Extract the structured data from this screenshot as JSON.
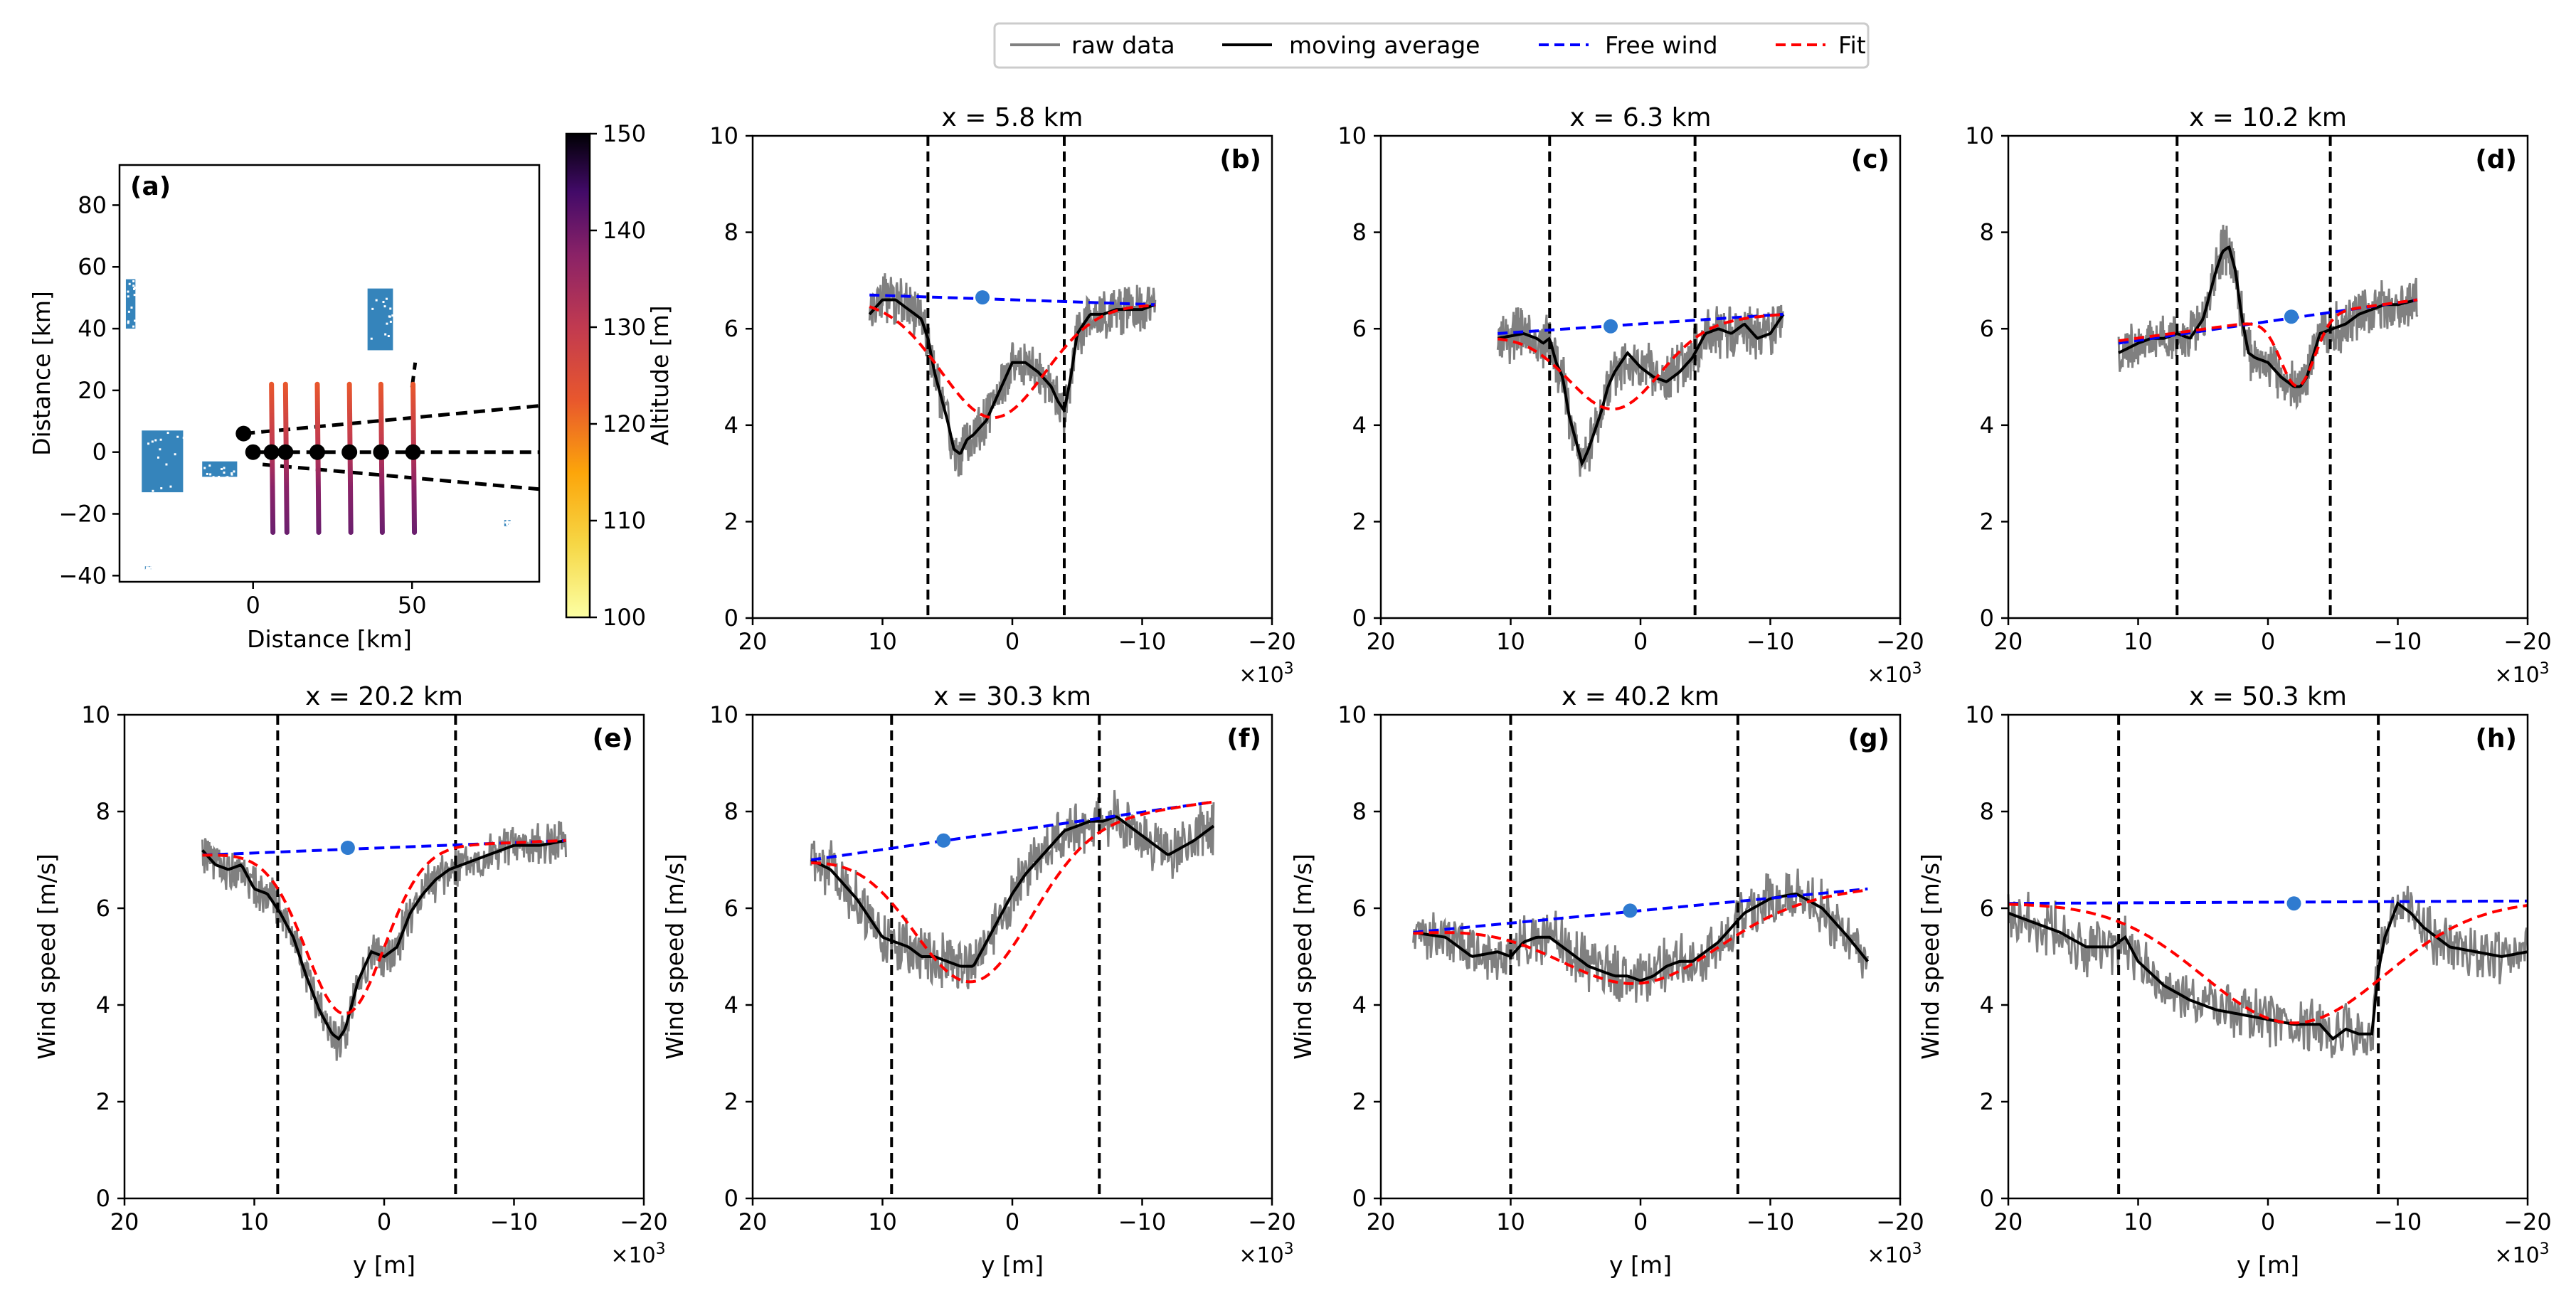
{
  "legend": {
    "placement": "top-center",
    "items": [
      {
        "label": "raw data",
        "color": "#808080",
        "style": "solid"
      },
      {
        "label": "moving average",
        "color": "#000000",
        "style": "solid"
      },
      {
        "label": "Free wind",
        "color": "#0000ff",
        "style": "dashed"
      },
      {
        "label": "Fit",
        "color": "#ff0000",
        "style": "dashed"
      }
    ]
  },
  "colors": {
    "raw": "#808080",
    "avg": "#000000",
    "free": "#0000ff",
    "fit": "#ff0000",
    "point": "#2f7bd0",
    "map_blue": "#1f77b4"
  },
  "chart_data": [
    {
      "type": "scatter",
      "panel": "(a)",
      "xlabel": "Distance [km]",
      "ylabel": "Distance [km]",
      "xlim": [
        -42,
        90
      ],
      "ylim": [
        -42,
        93
      ],
      "xticks": [
        0,
        50
      ],
      "yticks": [
        -40,
        -20,
        0,
        20,
        40,
        60,
        80
      ],
      "colorbar": {
        "label": "Altitude [m]",
        "range": [
          100,
          150
        ],
        "ticks": [
          100,
          110,
          120,
          130,
          140,
          150
        ],
        "colormap": "inferno_r"
      },
      "turbine_clusters": [
        {
          "x": [
            -40,
            -37
          ],
          "y": [
            40,
            56
          ]
        },
        {
          "x": [
            -35,
            -22
          ],
          "y": [
            -13,
            7
          ]
        },
        {
          "x": [
            -16,
            -5
          ],
          "y": [
            -8,
            -3
          ]
        },
        {
          "x": [
            36,
            44
          ],
          "y": [
            33,
            53
          ]
        },
        {
          "x": [
            -34,
            -32
          ],
          "y": [
            -38,
            -37
          ]
        },
        {
          "x": [
            79,
            81
          ],
          "y": [
            -24,
            -22
          ]
        }
      ],
      "flight_legs_x": [
        5.8,
        10.2,
        20.2,
        30.3,
        40.2,
        50.3
      ],
      "flight_legs_y": [
        -26,
        22
      ],
      "centre_points": [
        {
          "x": -3,
          "y": 6
        },
        {
          "x": 0,
          "y": 0
        },
        {
          "x": 5.8,
          "y": 0
        },
        {
          "x": 10.2,
          "y": 0
        },
        {
          "x": 20.2,
          "y": 0
        },
        {
          "x": 30.3,
          "y": 0
        },
        {
          "x": 40.2,
          "y": 0
        },
        {
          "x": 50.3,
          "y": 0
        }
      ],
      "wake_lines": [
        {
          "x": [
            -3,
            90
          ],
          "y": [
            6,
            15
          ]
        },
        {
          "x": [
            0,
            90
          ],
          "y": [
            0,
            0
          ]
        },
        {
          "x": [
            3,
            90
          ],
          "y": [
            -4,
            -12
          ]
        },
        {
          "x": [
            50,
            51
          ],
          "y": [
            21,
            29
          ]
        }
      ]
    },
    {
      "type": "line",
      "panel": "(b)",
      "title": "x = 5.8 km",
      "xlim": [
        20000,
        -20000
      ],
      "ylim": [
        0,
        10
      ],
      "xticks": [
        20,
        10,
        0,
        -10,
        -20
      ],
      "yticks": [
        0,
        2,
        4,
        6,
        8,
        10
      ],
      "x_multiplier": "×10³",
      "ylabel": "",
      "xlabel": "",
      "y_range": [
        11000,
        -11000
      ],
      "vlines": [
        6500,
        -4000
      ],
      "free_wind": {
        "x": [
          11000,
          -11000
        ],
        "y": [
          6.7,
          6.5
        ],
        "marker": {
          "x": 2300,
          "y": 6.65
        }
      },
      "fit": {
        "base_start": 6.6,
        "base_end": 6.5,
        "depth": 2.4,
        "center": 1500,
        "sigma": 4000
      },
      "avg_x": [
        11000,
        10000,
        9000,
        8000,
        7000,
        6500,
        6000,
        5000,
        4500,
        4000,
        3500,
        3000,
        2000,
        1000,
        0,
        -1000,
        -2000,
        -3000,
        -3500,
        -4000,
        -4500,
        -5000,
        -6000,
        -7000,
        -8000,
        -9000,
        -10000,
        -11000
      ],
      "avg_y": [
        6.3,
        6.6,
        6.6,
        6.4,
        6.2,
        5.8,
        5.1,
        4.1,
        3.5,
        3.4,
        3.7,
        3.8,
        4.1,
        4.7,
        5.3,
        5.3,
        5.1,
        4.8,
        4.5,
        4.3,
        5.0,
        5.9,
        6.3,
        6.3,
        6.4,
        6.4,
        6.4,
        6.5
      ],
      "noise": 0.45
    },
    {
      "type": "line",
      "panel": "(c)",
      "title": "x = 6.3 km",
      "xlim": [
        20000,
        -20000
      ],
      "ylim": [
        0,
        10
      ],
      "xticks": [
        20,
        10,
        0,
        -10,
        -20
      ],
      "yticks": [
        0,
        2,
        4,
        6,
        8,
        10
      ],
      "x_multiplier": "×10³",
      "ylabel": "",
      "xlabel": "",
      "y_range": [
        11000,
        -11000
      ],
      "vlines": [
        7000,
        -4200
      ],
      "free_wind": {
        "x": [
          11000,
          -11000
        ],
        "y": [
          5.9,
          6.3
        ],
        "marker": {
          "x": 2300,
          "y": 6.05
        }
      },
      "fit": {
        "base_start": 5.85,
        "base_end": 6.3,
        "depth": 1.7,
        "center": 2000,
        "sigma": 3500
      },
      "avg_x": [
        11000,
        9000,
        8000,
        7500,
        7000,
        6500,
        6000,
        5500,
        5000,
        4500,
        4000,
        3500,
        3000,
        2500,
        2000,
        1000,
        0,
        -1000,
        -2000,
        -3000,
        -4000,
        -5000,
        -6000,
        -7000,
        -8000,
        -9000,
        -10000,
        -11000
      ],
      "avg_y": [
        5.8,
        5.9,
        5.8,
        5.7,
        5.8,
        5.3,
        5.0,
        4.2,
        3.7,
        3.2,
        3.5,
        3.9,
        4.3,
        4.8,
        5.1,
        5.5,
        5.2,
        5.0,
        4.9,
        5.1,
        5.4,
        5.9,
        6.0,
        5.9,
        6.1,
        5.8,
        5.9,
        6.3
      ],
      "noise": 0.5
    },
    {
      "type": "line",
      "panel": "(d)",
      "title": "x = 10.2 km",
      "xlim": [
        20000,
        -20000
      ],
      "ylim": [
        0,
        10
      ],
      "xticks": [
        20,
        10,
        0,
        -10,
        -20
      ],
      "yticks": [
        0,
        2,
        4,
        6,
        8,
        10
      ],
      "x_multiplier": "×10³",
      "ylabel": "",
      "xlabel": "",
      "y_range": [
        11500,
        -11500
      ],
      "vlines": [
        7000,
        -4800
      ],
      "free_wind": {
        "x": [
          11500,
          -11500
        ],
        "y": [
          5.7,
          6.6
        ],
        "marker": {
          "x": -1800,
          "y": 6.25
        }
      },
      "fit": {
        "base_start": 5.75,
        "base_end": 6.6,
        "depth": 1.45,
        "center": -2300,
        "sigma": 1300
      },
      "avg_x": [
        11500,
        10000,
        9000,
        8000,
        7000,
        6000,
        5000,
        4500,
        4000,
        3500,
        3000,
        2500,
        2000,
        1500,
        1000,
        0,
        -1000,
        -2000,
        -2500,
        -3000,
        -4000,
        -5000,
        -6000,
        -7000,
        -8000,
        -9000,
        -10000,
        -11500
      ],
      "avg_y": [
        5.5,
        5.7,
        5.8,
        5.8,
        5.9,
        5.8,
        6.2,
        6.7,
        7.2,
        7.6,
        7.7,
        7.2,
        6.2,
        5.5,
        5.4,
        5.3,
        5.0,
        4.8,
        4.8,
        5.0,
        5.9,
        6.0,
        6.1,
        6.3,
        6.4,
        6.5,
        6.5,
        6.6
      ],
      "noise": 0.45
    },
    {
      "type": "line",
      "panel": "(e)",
      "title": "x = 20.2 km",
      "xlim": [
        20000,
        -20000
      ],
      "ylim": [
        0,
        10
      ],
      "xticks": [
        20,
        10,
        0,
        -10,
        -20
      ],
      "yticks": [
        0,
        2,
        4,
        6,
        8,
        10
      ],
      "x_multiplier": "×10³",
      "ylabel": "Wind speed [m/s]",
      "xlabel": "y [m]",
      "y_range": [
        14000,
        -14000
      ],
      "vlines": [
        8200,
        -5500
      ],
      "free_wind": {
        "x": [
          14000,
          -14000
        ],
        "y": [
          7.1,
          7.4
        ],
        "marker": {
          "x": 2800,
          "y": 7.25
        }
      },
      "fit": {
        "base_start": 7.1,
        "base_end": 7.4,
        "depth": 3.4,
        "center": 3000,
        "sigma": 3000
      },
      "avg_x": [
        14000,
        13000,
        12000,
        11000,
        10000,
        9000,
        8000,
        7000,
        6000,
        5000,
        4000,
        3500,
        3000,
        2000,
        1000,
        0,
        -1000,
        -2000,
        -3000,
        -4000,
        -5000,
        -6000,
        -7000,
        -8000,
        -9000,
        -10000,
        -12000,
        -14000
      ],
      "avg_y": [
        7.2,
        6.9,
        6.8,
        6.9,
        6.4,
        6.3,
        5.9,
        5.4,
        4.6,
        3.9,
        3.4,
        3.3,
        3.5,
        4.5,
        5.1,
        5.0,
        5.2,
        5.9,
        6.3,
        6.6,
        6.8,
        6.9,
        7.0,
        7.1,
        7.2,
        7.3,
        7.3,
        7.4
      ],
      "noise": 0.4
    },
    {
      "type": "line",
      "panel": "(f)",
      "title": "x = 30.3 km",
      "xlim": [
        20000,
        -20000
      ],
      "ylim": [
        0,
        10
      ],
      "xticks": [
        20,
        10,
        0,
        -10,
        -20
      ],
      "yticks": [
        0,
        2,
        4,
        6,
        8,
        10
      ],
      "x_multiplier": "×10³",
      "ylabel": "Wind speed [m/s]",
      "xlabel": "y [m]",
      "y_range": [
        15500,
        -15500
      ],
      "vlines": [
        9300,
        -6700
      ],
      "free_wind": {
        "x": [
          15500,
          -15500
        ],
        "y": [
          7.0,
          8.2
        ],
        "marker": {
          "x": 5300,
          "y": 7.4
        }
      },
      "fit": {
        "base_start": 7.0,
        "base_end": 8.2,
        "depth": 3.0,
        "center": 3000,
        "sigma": 4500
      },
      "avg_x": [
        15500,
        14000,
        13000,
        12000,
        11000,
        10000,
        9000,
        8000,
        7000,
        6000,
        5000,
        4000,
        3000,
        2000,
        1000,
        0,
        -1000,
        -2000,
        -3000,
        -4000,
        -5000,
        -6000,
        -7000,
        -8000,
        -10000,
        -12000,
        -14000,
        -15500
      ],
      "avg_y": [
        7.0,
        6.8,
        6.5,
        6.2,
        5.8,
        5.4,
        5.3,
        5.2,
        5.0,
        5.0,
        4.9,
        4.8,
        4.8,
        5.3,
        5.8,
        6.3,
        6.7,
        7.0,
        7.3,
        7.6,
        7.7,
        7.8,
        7.8,
        7.9,
        7.5,
        7.1,
        7.4,
        7.7
      ],
      "noise": 0.5
    },
    {
      "type": "line",
      "panel": "(g)",
      "title": "x = 40.2 km",
      "xlim": [
        20000,
        -20000
      ],
      "ylim": [
        0,
        10
      ],
      "xticks": [
        20,
        10,
        0,
        -10,
        -20
      ],
      "yticks": [
        0,
        2,
        4,
        6,
        8,
        10
      ],
      "x_multiplier": "×10³",
      "ylabel": "Wind speed [m/s]",
      "xlabel": "y [m]",
      "y_range": [
        17500,
        -17500
      ],
      "vlines": [
        10000,
        -7500
      ],
      "free_wind": {
        "x": [
          17500,
          -17500
        ],
        "y": [
          5.5,
          6.4
        ],
        "marker": {
          "x": 800,
          "y": 5.95
        }
      },
      "fit": {
        "base_start": 5.5,
        "base_end": 6.4,
        "depth": 1.5,
        "center": 0,
        "sigma": 6000
      },
      "avg_x": [
        17500,
        15000,
        13000,
        11000,
        10000,
        9000,
        8000,
        7000,
        6000,
        5000,
        4000,
        3000,
        2000,
        1000,
        0,
        -1000,
        -2000,
        -3000,
        -4000,
        -5000,
        -6000,
        -7000,
        -8000,
        -10000,
        -12000,
        -14000,
        -16000,
        -17500
      ],
      "avg_y": [
        5.5,
        5.4,
        5.0,
        5.1,
        5.0,
        5.3,
        5.4,
        5.4,
        5.2,
        5.0,
        4.8,
        4.7,
        4.6,
        4.6,
        4.5,
        4.6,
        4.8,
        4.9,
        4.9,
        5.1,
        5.3,
        5.6,
        5.9,
        6.2,
        6.3,
        6.0,
        5.4,
        4.9
      ],
      "noise": 0.5
    },
    {
      "type": "line",
      "panel": "(h)",
      "title": "x = 50.3 km",
      "xlim": [
        20000,
        -20000
      ],
      "ylim": [
        0,
        10
      ],
      "xticks": [
        20,
        10,
        0,
        -10,
        -20
      ],
      "yticks": [
        0,
        2,
        4,
        6,
        8,
        10
      ],
      "x_multiplier": "×10³",
      "ylabel": "Wind speed [m/s]",
      "xlabel": "y [m]",
      "y_range": [
        20000,
        -20000
      ],
      "vlines": [
        11500,
        -8500
      ],
      "free_wind": {
        "x": [
          20000,
          -20000
        ],
        "y": [
          6.1,
          6.15
        ],
        "marker": {
          "x": -2000,
          "y": 6.1
        }
      },
      "fit": {
        "base_start": 6.1,
        "base_end": 6.15,
        "depth": 2.5,
        "center": -2000,
        "sigma": 7000
      },
      "avg_x": [
        20000,
        18000,
        16000,
        14000,
        12000,
        11000,
        10000,
        8000,
        6000,
        4000,
        2000,
        0,
        -2000,
        -4000,
        -5000,
        -6000,
        -7000,
        -8000,
        -8500,
        -9000,
        -10000,
        -11000,
        -12000,
        -13000,
        -14000,
        -16000,
        -18000,
        -20000
      ],
      "avg_y": [
        5.9,
        5.7,
        5.5,
        5.2,
        5.2,
        5.4,
        4.9,
        4.4,
        4.1,
        3.9,
        3.8,
        3.7,
        3.6,
        3.6,
        3.3,
        3.5,
        3.4,
        3.4,
        4.7,
        5.4,
        6.1,
        5.9,
        5.6,
        5.4,
        5.2,
        5.1,
        5.0,
        5.1
      ],
      "noise": 0.5
    }
  ]
}
